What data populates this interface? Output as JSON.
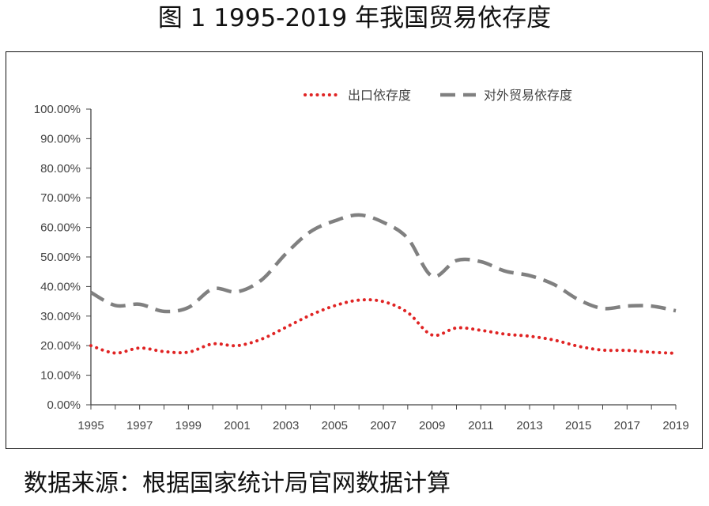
{
  "title": "图 1 1995-2019 年我国贸易依存度",
  "source_note": "数据来源：根据国家统计局官网数据计算",
  "chart_data": {
    "type": "line",
    "x": [
      1995,
      1996,
      1997,
      1998,
      1999,
      2000,
      2001,
      2002,
      2003,
      2004,
      2005,
      2006,
      2007,
      2008,
      2009,
      2010,
      2011,
      2012,
      2013,
      2014,
      2015,
      2016,
      2017,
      2018,
      2019
    ],
    "x_tick_labels": [
      "1995",
      "1997",
      "1999",
      "2001",
      "2003",
      "2005",
      "2007",
      "2009",
      "2011",
      "2013",
      "2015",
      "2017",
      "2019"
    ],
    "y_tick_labels": [
      "0.00%",
      "10.00%",
      "20.00%",
      "30.00%",
      "40.00%",
      "50.00%",
      "60.00%",
      "70.00%",
      "80.00%",
      "90.00%",
      "100.00%"
    ],
    "ylim": [
      0,
      100
    ],
    "grid": false,
    "legend_position": "top",
    "series": [
      {
        "name": "出口依存度",
        "style": "dotted",
        "color": "#e02424",
        "values": [
          20.0,
          17.5,
          19.2,
          18.0,
          17.8,
          20.6,
          20.0,
          22.2,
          26.2,
          30.3,
          33.5,
          35.4,
          34.9,
          31.2,
          23.6,
          26.0,
          25.2,
          23.9,
          23.2,
          21.9,
          19.8,
          18.5,
          18.4,
          17.8,
          17.4
        ]
      },
      {
        "name": "对外贸易依存度",
        "style": "dashed",
        "color": "#808080",
        "values": [
          38.0,
          33.6,
          34.0,
          31.6,
          32.9,
          39.2,
          38.2,
          42.2,
          51.1,
          58.5,
          62.2,
          64.2,
          61.7,
          56.3,
          43.5,
          48.8,
          48.4,
          45.2,
          43.7,
          40.7,
          35.6,
          32.6,
          33.4,
          33.4,
          31.8
        ]
      }
    ]
  }
}
